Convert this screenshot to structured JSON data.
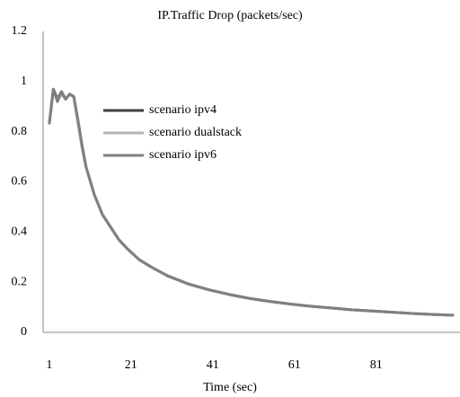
{
  "chart_data": {
    "type": "line",
    "title": "IP.Traffic Drop (packets/sec)",
    "x_label": "Time (sec)",
    "x": [
      1,
      2,
      3,
      4,
      5,
      6,
      7,
      8,
      9,
      10,
      12,
      14,
      16,
      18,
      20,
      23,
      26,
      30,
      35,
      40,
      45,
      50,
      55,
      60,
      65,
      70,
      75,
      80,
      85,
      90,
      95,
      100
    ],
    "series": [
      {
        "name": "scenario ipv4",
        "color": "#404040",
        "values": [
          0.83,
          0.97,
          0.93,
          0.96,
          0.93,
          0.95,
          0.94,
          0.84,
          0.74,
          0.66,
          0.55,
          0.47,
          0.42,
          0.37,
          0.335,
          0.29,
          0.26,
          0.225,
          0.193,
          0.17,
          0.151,
          0.135,
          0.123,
          0.113,
          0.104,
          0.097,
          0.09,
          0.085,
          0.08,
          0.075,
          0.071,
          0.068
        ]
      },
      {
        "name": "scenario dualstack",
        "color": "#b4b4b4",
        "values": [
          0.83,
          0.96,
          0.93,
          0.95,
          0.93,
          0.95,
          0.94,
          0.84,
          0.74,
          0.66,
          0.55,
          0.47,
          0.42,
          0.37,
          0.335,
          0.29,
          0.26,
          0.226,
          0.194,
          0.17,
          0.152,
          0.136,
          0.124,
          0.113,
          0.105,
          0.097,
          0.09,
          0.085,
          0.08,
          0.075,
          0.071,
          0.068
        ]
      },
      {
        "name": "scenario ipv6",
        "color": "#808080",
        "values": [
          0.83,
          0.97,
          0.92,
          0.96,
          0.93,
          0.95,
          0.94,
          0.85,
          0.75,
          0.66,
          0.55,
          0.47,
          0.42,
          0.37,
          0.335,
          0.29,
          0.26,
          0.225,
          0.193,
          0.17,
          0.151,
          0.135,
          0.123,
          0.113,
          0.104,
          0.097,
          0.09,
          0.085,
          0.08,
          0.075,
          0.071,
          0.068
        ]
      }
    ],
    "xlim": [
      -0.5,
      101.5
    ],
    "xticks": [
      1,
      21,
      41,
      61,
      81
    ],
    "ylim": [
      0,
      1.2
    ],
    "yticks": [
      0,
      0.2,
      0.4,
      0.6,
      0.8,
      1,
      1.2
    ],
    "grid": false
  }
}
